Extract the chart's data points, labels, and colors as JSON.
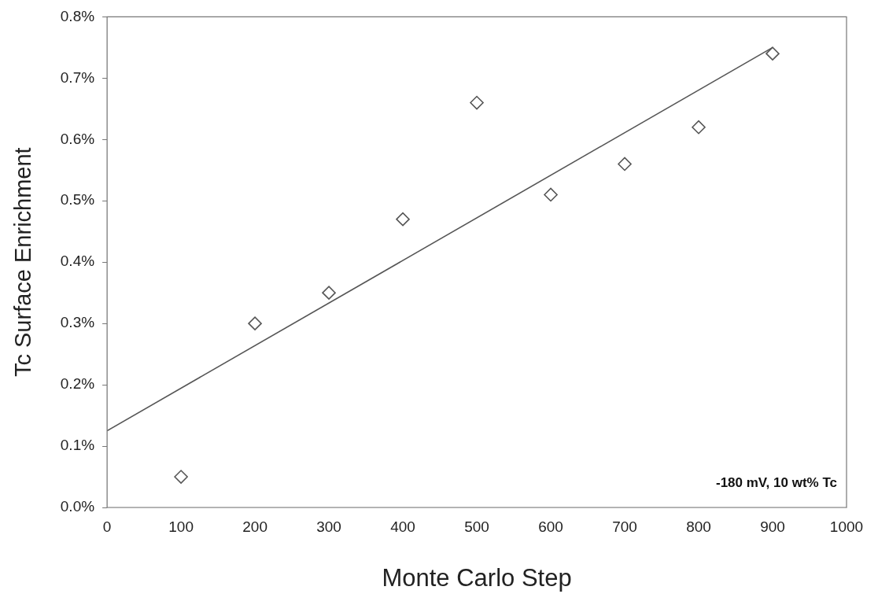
{
  "chart_data": {
    "type": "scatter",
    "xlabel": "Monte Carlo Step",
    "ylabel": "Tc Surface Enrichment",
    "xlim": [
      0,
      1000
    ],
    "xticks": [
      0,
      100,
      200,
      300,
      400,
      500,
      600,
      700,
      800,
      900,
      1000
    ],
    "ylim": [
      0,
      0.8
    ],
    "yticks": [
      {
        "value": 0,
        "label": "0.0%"
      },
      {
        "value": 0.1,
        "label": "0.1%"
      },
      {
        "value": 0.2,
        "label": "0.2%"
      },
      {
        "value": 0.3,
        "label": "0.3%"
      },
      {
        "value": 0.4,
        "label": "0.4%"
      },
      {
        "value": 0.5,
        "label": "0.5%"
      },
      {
        "value": 0.6,
        "label": "0.6%"
      },
      {
        "value": 0.7,
        "label": "0.7%"
      },
      {
        "value": 0.8,
        "label": "0.8%"
      }
    ],
    "series": [
      {
        "color": "#555555",
        "marker": "diamond",
        "x": [
          100,
          200,
          300,
          400,
          500,
          600,
          700,
          800,
          900
        ],
        "values": [
          0.05,
          0.3,
          0.35,
          0.47,
          0.66,
          0.51,
          0.56,
          0.62,
          0.74
        ]
      },
      {
        "type": "line",
        "color": "#555555",
        "marker": "none",
        "x": [
          0,
          900
        ],
        "values": [
          0.125,
          0.75
        ]
      }
    ],
    "grid": false,
    "legend": false,
    "annotations": [
      "-180 mV, 10 wt% Tc"
    ]
  }
}
